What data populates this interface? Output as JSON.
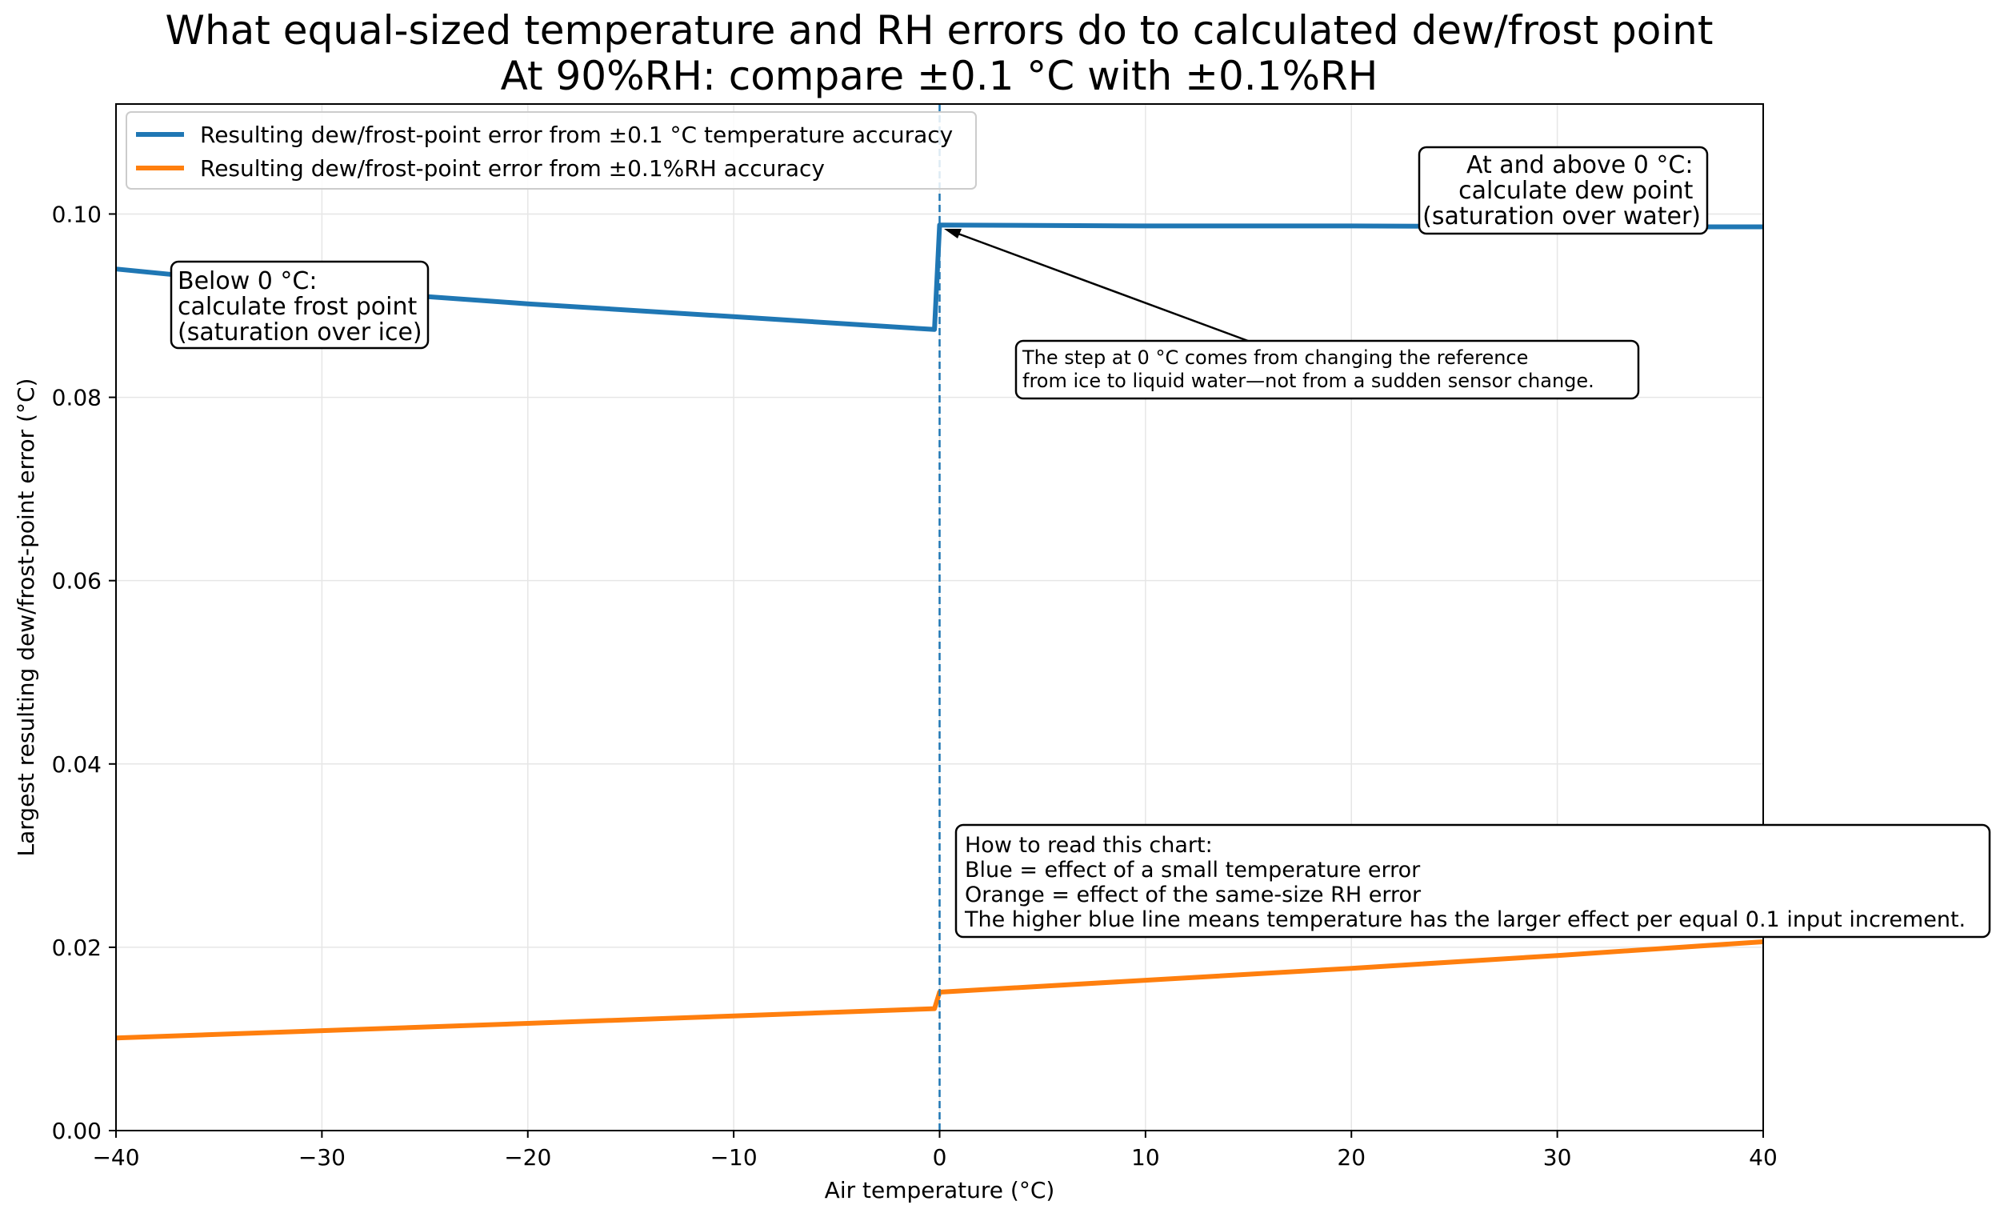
{
  "chart_data": {
    "type": "line",
    "title": "What equal-sized temperature and RH errors do to calculated dew/frost point",
    "subtitle": "At 90%RH: compare ±0.1 °C with ±0.1%RH",
    "xlabel": "Air temperature (°C)",
    "ylabel": "Largest resulting dew/frost-point error (°C)",
    "xlim": [
      -40,
      40
    ],
    "ylim": [
      0,
      0.112
    ],
    "x_ticks": [
      "−40",
      "−30",
      "−20",
      "−10",
      "0",
      "10",
      "20",
      "30",
      "40"
    ],
    "y_ticks": [
      "0.00",
      "0.02",
      "0.04",
      "0.06",
      "0.08",
      "0.10"
    ],
    "grid": true,
    "legend_position": "top-left",
    "vertical_reference_line_x": 0,
    "series": [
      {
        "name": "Resulting dew/frost-point error from ±0.1 °C temperature accuracy",
        "color": "#1f77b4",
        "segments": [
          {
            "x": [
              -40,
              -30,
              -20,
              -10,
              -0.25
            ],
            "y": [
              0.094,
              0.0918,
              0.0902,
              0.0888,
              0.0874
            ]
          },
          {
            "x": [
              0,
              10,
              20,
              30,
              40
            ],
            "y": [
              0.0988,
              0.0987,
              0.0987,
              0.0986,
              0.0986
            ]
          }
        ]
      },
      {
        "name": "Resulting dew/frost-point error from ±0.1%RH accuracy",
        "color": "#ff7f0e",
        "segments": [
          {
            "x": [
              -40,
              -30,
              -20,
              -10,
              -0.25
            ],
            "y": [
              0.0101,
              0.0109,
              0.0117,
              0.0125,
              0.0133
            ]
          },
          {
            "x": [
              0,
              10,
              20,
              30,
              40
            ],
            "y": [
              0.0151,
              0.0164,
              0.0177,
              0.0191,
              0.0206
            ]
          }
        ]
      }
    ],
    "annotations": {
      "below_zero": [
        "Below 0 °C:",
        "calculate frost point",
        "(saturation over ice)"
      ],
      "above_zero": [
        "At and above 0 °C:",
        "calculate dew point",
        "(saturation over water)"
      ],
      "step_note": [
        "The step at 0 °C comes from changing the reference",
        "from ice to liquid water—not from a sudden sensor change."
      ],
      "how_to_read": [
        "How to read this chart:",
        "Blue = effect of a small temperature error",
        "Orange = effect of the same-size RH error",
        "The higher blue line means temperature has the larger effect per equal 0.1 input increment."
      ]
    }
  }
}
